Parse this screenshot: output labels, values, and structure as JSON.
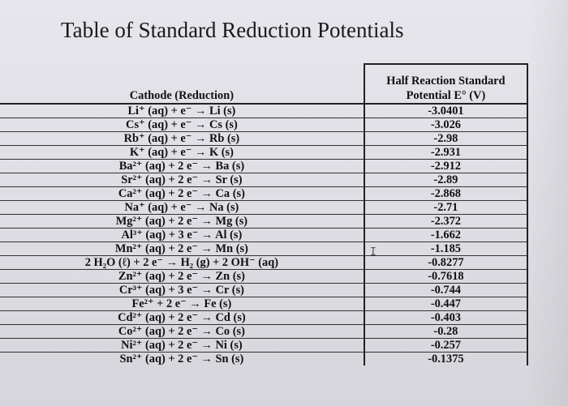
{
  "title": "Table of Standard Reduction Potentials",
  "table": {
    "header_cathode": "Cathode (Reduction)",
    "header_potential_line1": "Half Reaction Standard",
    "header_potential_line2": "Potential E° (V)",
    "rows": [
      {
        "reaction": "Li⁺ (aq) + e⁻ → Li (s)",
        "potential": "-3.0401"
      },
      {
        "reaction": "Cs⁺ (aq) + e⁻ → Cs (s)",
        "potential": "-3.026"
      },
      {
        "reaction": "Rb⁺ (aq) + e⁻ → Rb (s)",
        "potential": "-2.98"
      },
      {
        "reaction": "K⁺ (aq) + e⁻ → K (s)",
        "potential": "-2.931"
      },
      {
        "reaction": "Ba²⁺ (aq) + 2 e⁻ → Ba (s)",
        "potential": "-2.912"
      },
      {
        "reaction": "Sr²⁺ (aq) + 2 e⁻ → Sr (s)",
        "potential": "-2.89"
      },
      {
        "reaction": "Ca²⁺ (aq) + 2 e⁻ → Ca (s)",
        "potential": "-2.868"
      },
      {
        "reaction": "Na⁺ (aq) + e⁻ → Na (s)",
        "potential": "-2.71"
      },
      {
        "reaction": "Mg²⁺ (aq) + 2 e⁻ → Mg (s)",
        "potential": "-2.372"
      },
      {
        "reaction": "Al³⁺ (aq) + 3 e⁻ → Al (s)",
        "potential": "-1.662"
      },
      {
        "reaction": "Mn²⁺ (aq) + 2 e⁻ → Mn (s)",
        "potential": "-1.185"
      },
      {
        "reaction": "2 H₂O (ℓ) + 2 e⁻ → H₂ (g) + 2 OH⁻ (aq)",
        "potential": "-0.8277"
      },
      {
        "reaction": "Zn²⁺ (aq) + 2 e⁻ → Zn (s)",
        "potential": "-0.7618"
      },
      {
        "reaction": "Cr³⁺ (aq) + 3 e⁻ → Cr (s)",
        "potential": "-0.744"
      },
      {
        "reaction": "Fe²⁺ + 2 e⁻ → Fe (s)",
        "potential": "-0.447"
      },
      {
        "reaction": "Cd²⁺ (aq) + 2 e⁻ → Cd (s)",
        "potential": "-0.403"
      },
      {
        "reaction": "Co²⁺ (aq) + 2 e⁻ → Co (s)",
        "potential": "-0.28"
      },
      {
        "reaction": "Ni²⁺ (aq) + 2 e⁻ → Ni (s)",
        "potential": "-0.257"
      },
      {
        "reaction": "Sn²⁺ (aq) + 2 e⁻ → Sn (s)",
        "potential": "-0.1375"
      }
    ]
  }
}
